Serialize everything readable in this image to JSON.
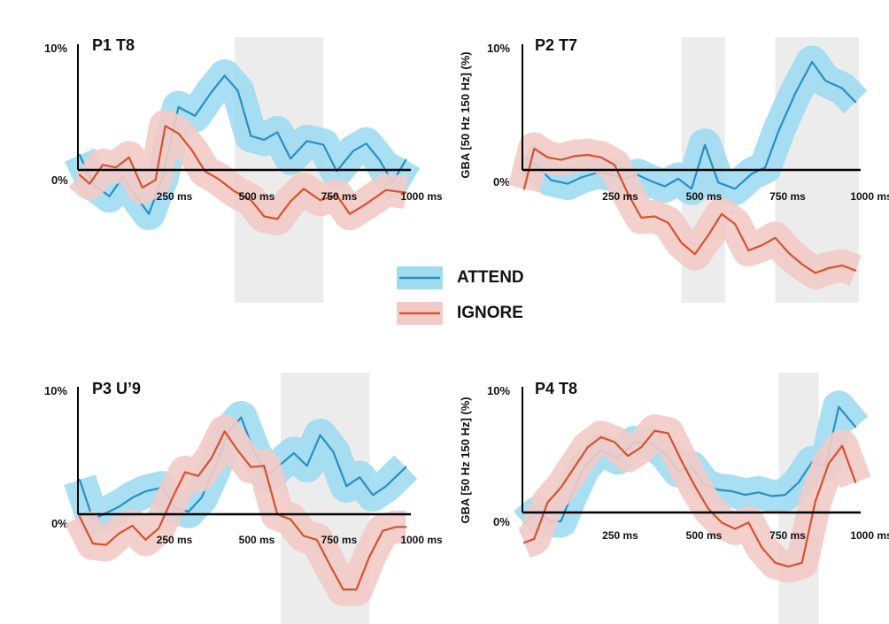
{
  "colors": {
    "attend_line": "#2a8fc4",
    "attend_band": "#9fdcf1",
    "ignore_line": "#d7522e",
    "ignore_band": "#f2cbc7",
    "window": "#ececec",
    "axis": "#000000"
  },
  "legend": [
    {
      "label": "ATTEND",
      "series": "attend"
    },
    {
      "label": "IGNORE",
      "series": "ignore"
    }
  ],
  "chart_data": [
    {
      "type": "line",
      "title": "P1 T8",
      "ylabel": "",
      "ytick_labels": [
        "10%",
        "0%"
      ],
      "xtick_labels": [
        "250 ms",
        "500 ms",
        "750 ms",
        "1000 ms"
      ],
      "xlim": [
        0,
        1000
      ],
      "ylim": [
        -6,
        10
      ],
      "highlight_ms": [
        470,
        740
      ],
      "band_halfwidth": 1.3,
      "grid": false,
      "series": [
        {
          "name": "ATTEND",
          "key": "attend",
          "x": [
            0,
            40,
            90,
            130,
            160,
            210,
            250,
            300,
            350,
            400,
            440,
            480,
            520,
            560,
            600,
            640,
            690,
            740,
            780,
            830,
            870,
            910,
            950,
            990
          ],
          "y": [
            1.2,
            -1.1,
            -2.1,
            -0.6,
            -1.7,
            -3.5,
            -0.7,
            5.0,
            4.3,
            6.2,
            7.5,
            6.3,
            2.7,
            2.4,
            3.0,
            0.9,
            2.3,
            2.0,
            -0.1,
            1.5,
            2.1,
            0.8,
            -1.0,
            0.8
          ]
        },
        {
          "name": "IGNORE",
          "key": "ignore",
          "x": [
            0,
            30,
            70,
            110,
            150,
            190,
            230,
            260,
            300,
            340,
            380,
            420,
            470,
            520,
            560,
            600,
            640,
            680,
            730,
            780,
            820,
            870,
            930,
            990
          ],
          "y": [
            -0.4,
            -1.1,
            0.4,
            0.2,
            1.0,
            -1.4,
            -0.8,
            3.5,
            2.9,
            1.6,
            -0.1,
            -0.7,
            -1.7,
            -2.4,
            -3.7,
            -3.9,
            -2.5,
            -1.5,
            -2.4,
            -2.0,
            -3.5,
            -2.7,
            -1.6,
            -1.8
          ]
        }
      ]
    },
    {
      "type": "line",
      "title": "P2 T7",
      "ylabel": "GBA [50 Hz 150 Hz] (%)",
      "ytick_labels": [
        "10%",
        "0%"
      ],
      "xtick_labels": [
        "250 ms",
        "500 ms",
        "750 ms",
        "1000 ms"
      ],
      "xlim": [
        0,
        1000
      ],
      "ylim": [
        -9,
        10
      ],
      "highlight_ms": [
        470,
        600,
        750,
        1000
      ],
      "band_halfwidth": 1.3,
      "grid": false,
      "series": [
        {
          "name": "ATTEND",
          "key": "attend",
          "x": [
            0,
            40,
            80,
            130,
            170,
            220,
            260,
            300,
            340,
            380,
            420,
            460,
            500,
            540,
            580,
            630,
            680,
            720,
            760,
            810,
            860,
            900,
            950,
            990
          ],
          "y": [
            1.0,
            0.3,
            -0.8,
            -1.1,
            -0.6,
            -0.2,
            -0.4,
            -0.7,
            -0.4,
            -0.9,
            -1.3,
            -0.7,
            -1.5,
            2.0,
            -1.0,
            -1.5,
            -0.3,
            0.2,
            3.1,
            6.1,
            8.6,
            7.1,
            6.5,
            5.4
          ]
        },
        {
          "name": "IGNORE",
          "key": "ignore",
          "x": [
            0,
            30,
            70,
            110,
            150,
            190,
            230,
            270,
            310,
            350,
            390,
            430,
            470,
            510,
            550,
            590,
            630,
            670,
            710,
            750,
            790,
            830,
            870,
            910,
            950,
            990
          ],
          "y": [
            -1.5,
            1.7,
            1.0,
            0.8,
            1.1,
            1.2,
            1.0,
            0.4,
            -1.9,
            -3.8,
            -3.7,
            -4.2,
            -5.8,
            -6.7,
            -5.2,
            -3.5,
            -4.3,
            -6.4,
            -6.0,
            -5.4,
            -6.6,
            -7.5,
            -8.2,
            -7.8,
            -7.6,
            -8.0
          ]
        }
      ]
    },
    {
      "type": "line",
      "title": "P3 U’9",
      "ylabel": "",
      "ytick_labels": [
        "10%",
        "0%"
      ],
      "xtick_labels": [
        "250 ms",
        "500 ms",
        "750 ms",
        "1000 ms"
      ],
      "xlim": [
        0,
        1000
      ],
      "ylim": [
        -6,
        10
      ],
      "highlight_ms": [
        610,
        880
      ],
      "band_halfwidth": 1.3,
      "grid": false,
      "series": [
        {
          "name": "ATTEND",
          "key": "attend",
          "x": [
            0,
            40,
            80,
            120,
            160,
            200,
            250,
            290,
            330,
            370,
            410,
            450,
            490,
            530,
            570,
            610,
            650,
            690,
            730,
            770,
            810,
            850,
            890,
            930,
            990
          ],
          "y": [
            2.7,
            -0.4,
            0.1,
            0.6,
            1.3,
            1.8,
            2.1,
            0.5,
            0.2,
            1.3,
            3.6,
            6.4,
            7.6,
            4.9,
            3.0,
            3.9,
            4.8,
            3.8,
            6.2,
            4.9,
            2.2,
            2.9,
            1.5,
            2.2,
            3.7
          ]
        },
        {
          "name": "IGNORE",
          "key": "ignore",
          "x": [
            0,
            40,
            80,
            120,
            160,
            200,
            240,
            280,
            320,
            360,
            400,
            440,
            480,
            520,
            560,
            600,
            640,
            680,
            720,
            760,
            800,
            840,
            880,
            920,
            960,
            990
          ],
          "y": [
            -0.2,
            -2.3,
            -2.4,
            -1.5,
            -0.9,
            -2.0,
            -1.1,
            1.2,
            3.3,
            3.0,
            4.4,
            6.5,
            5.0,
            3.7,
            3.8,
            0.0,
            -0.4,
            -1.7,
            -2.0,
            -4.0,
            -5.9,
            -5.9,
            -3.3,
            -1.3,
            -1.0,
            -1.0
          ]
        }
      ]
    },
    {
      "type": "line",
      "title": "P4 T8",
      "ylabel": "GBA [50 Hz 150 Hz] (%)",
      "ytick_labels": [
        "10%",
        "0%"
      ],
      "xtick_labels": [
        "250 ms",
        "500 ms",
        "750 ms",
        "1000 ms"
      ],
      "xlim": [
        0,
        1000
      ],
      "ylim": [
        -6,
        10
      ],
      "highlight_ms": [
        760,
        880
      ],
      "band_halfwidth": 1.3,
      "grid": false,
      "series": [
        {
          "name": "ATTEND",
          "key": "attend",
          "x": [
            0,
            40,
            80,
            110,
            140,
            180,
            230,
            280,
            330,
            380,
            420,
            460,
            500,
            540,
            580,
            620,
            660,
            700,
            740,
            780,
            820,
            860,
            900,
            940,
            990
          ],
          "y": [
            -0.9,
            0.0,
            -0.7,
            -0.7,
            1.3,
            3.6,
            5.0,
            4.3,
            5.6,
            5.5,
            4.7,
            3.3,
            3.6,
            2.2,
            1.8,
            1.7,
            1.4,
            1.6,
            1.3,
            1.4,
            2.4,
            4.0,
            3.7,
            8.4,
            6.8
          ]
        },
        {
          "name": "IGNORE",
          "key": "ignore",
          "x": [
            0,
            30,
            70,
            110,
            150,
            190,
            230,
            270,
            310,
            350,
            390,
            430,
            470,
            510,
            550,
            590,
            630,
            670,
            710,
            750,
            790,
            830,
            870,
            910,
            950,
            990
          ],
          "y": [
            -2.4,
            -2.1,
            0.8,
            2.0,
            3.6,
            5.2,
            6.0,
            5.6,
            4.5,
            5.2,
            6.5,
            6.3,
            4.1,
            2.1,
            0.3,
            -0.8,
            -1.3,
            -0.8,
            -2.8,
            -4.0,
            -4.3,
            -4.0,
            0.9,
            3.9,
            5.3,
            2.4
          ]
        }
      ]
    }
  ]
}
